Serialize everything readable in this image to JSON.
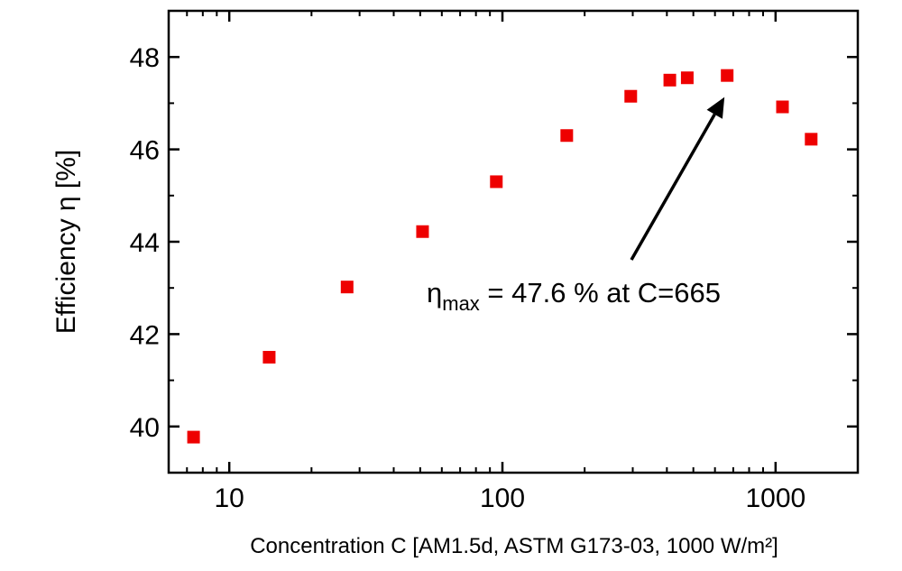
{
  "chart_data": {
    "type": "scatter",
    "xscale": "log",
    "xlim": [
      6,
      2000
    ],
    "ylim": [
      39,
      49
    ],
    "xticks": [
      10,
      100,
      1000
    ],
    "xtick_labels": [
      "10",
      "100",
      "1000"
    ],
    "yticks": [
      40,
      42,
      44,
      46,
      48
    ],
    "ytick_labels": [
      "40",
      "42",
      "44",
      "46",
      "48"
    ],
    "xlabel": "Concentration C [AM1.5d, ASTM G173-03, 1000 W/m²]",
    "ylabel": "Efficiency η [%]",
    "marker_color": "#ee0000",
    "grid": false,
    "series": [
      {
        "x": [
          7.4,
          14,
          27,
          51,
          95,
          172,
          295,
          410,
          475,
          665,
          1060,
          1350
        ],
        "y": [
          39.77,
          41.5,
          43.02,
          44.22,
          45.3,
          46.3,
          47.15,
          47.5,
          47.55,
          47.6,
          46.92,
          46.22
        ]
      }
    ],
    "annotation": {
      "symbol": "η",
      "subscript": "max",
      "text": " = 47.6 % at C=665",
      "arrow_to": {
        "x": 665,
        "y": 47.6
      }
    }
  }
}
